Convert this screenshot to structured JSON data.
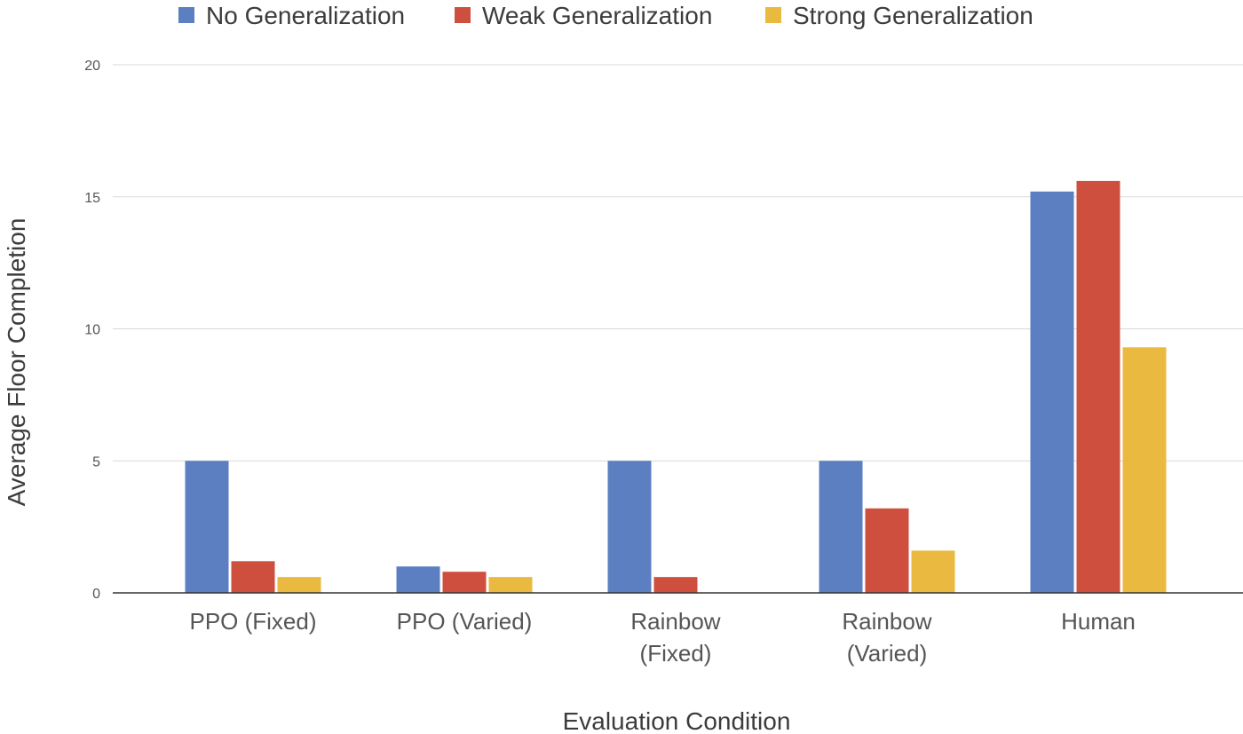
{
  "chart_data": {
    "type": "bar",
    "title": "",
    "xlabel": "Evaluation Condition",
    "ylabel": "Average Floor Completion",
    "ylim": [
      0,
      20
    ],
    "yticks": [
      0,
      5,
      10,
      15,
      20
    ],
    "grid": true,
    "legend_position": "top",
    "categories": [
      [
        "PPO (Fixed)"
      ],
      [
        "PPO (Varied)"
      ],
      [
        "Rainbow",
        "(Fixed)"
      ],
      [
        "Rainbow",
        "(Varied)"
      ],
      [
        "Human"
      ]
    ],
    "series": [
      {
        "name": "No Generalization",
        "color": "#5b7fc0",
        "values": [
          5.0,
          1.0,
          5.0,
          5.0,
          15.2
        ]
      },
      {
        "name": "Weak Generalization",
        "color": "#cf4f3f",
        "values": [
          1.2,
          0.8,
          0.6,
          3.2,
          15.6
        ]
      },
      {
        "name": "Strong Generalization",
        "color": "#e9b940",
        "values": [
          0.6,
          0.6,
          0.0,
          1.6,
          9.3
        ]
      }
    ]
  }
}
